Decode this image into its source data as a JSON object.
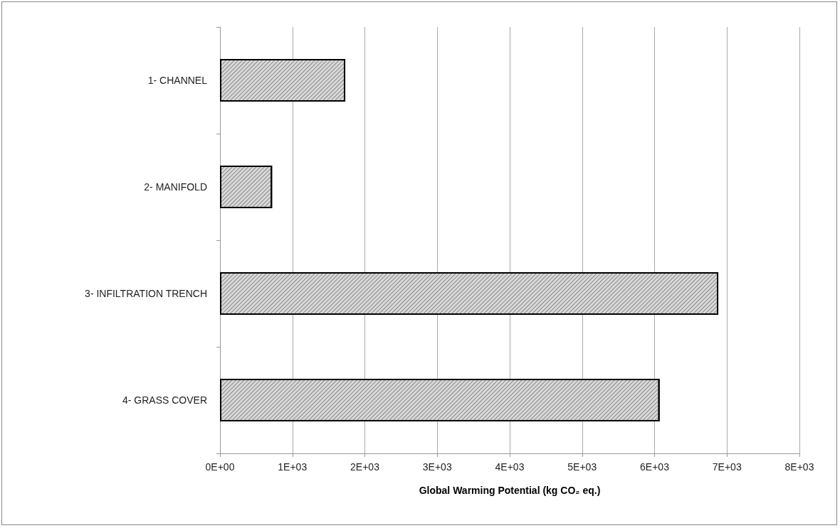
{
  "chart_data": {
    "type": "bar",
    "orientation": "horizontal",
    "xlabel": "Global Warming Potential (kg CO₂ eq.)",
    "categories": [
      "1- CHANNEL",
      "2- MANIFOLD",
      "3- INFILTRATION TRENCH",
      "4- GRASS COVER"
    ],
    "values": [
      1730,
      720,
      6880,
      6070
    ],
    "color": "#d9d9d9",
    "xlim": [
      0,
      8000
    ],
    "xticks": [
      {
        "value": 0,
        "label": "0E+00"
      },
      {
        "value": 1000,
        "label": "1E+03"
      },
      {
        "value": 2000,
        "label": "2E+03"
      },
      {
        "value": 3000,
        "label": "3E+03"
      },
      {
        "value": 4000,
        "label": "4E+03"
      },
      {
        "value": 5000,
        "label": "5E+03"
      },
      {
        "value": 6000,
        "label": "6E+03"
      },
      {
        "value": 7000,
        "label": "7E+03"
      },
      {
        "value": 8000,
        "label": "8E+03"
      }
    ],
    "grid": "x"
  }
}
